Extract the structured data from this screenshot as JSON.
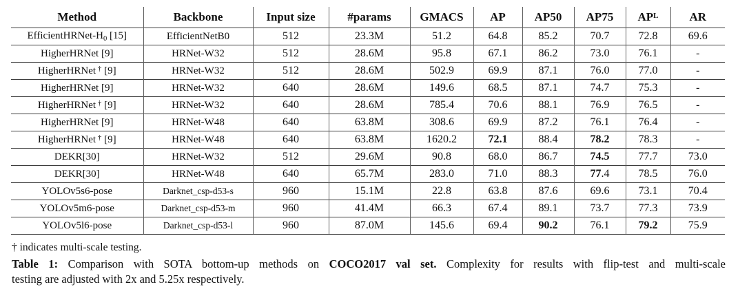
{
  "colors": {
    "background": "#ffffff",
    "text": "#111111",
    "horizontal_rule": "#3d3d3d",
    "vertical_rule": "#5f5f5f"
  },
  "table": {
    "header": [
      "Method",
      "Backbone",
      "Input size",
      "#params",
      "GMACS",
      "AP",
      "AP50",
      "AP75",
      [
        {
          "t": "AP"
        },
        {
          "t": "L",
          "sup": true
        }
      ],
      "AR"
    ],
    "rows": [
      [
        [
          {
            "t": "EfficientHRNet-H"
          },
          {
            "t": "0",
            "sub": true
          },
          {
            "t": " [15]"
          }
        ],
        "EfficientNetB0",
        "512",
        "23.3M",
        "51.2",
        "64.8",
        "85.2",
        "70.7",
        "72.8",
        "69.6"
      ],
      [
        "HigherHRNet [9]",
        "HRNet-W32",
        "512",
        "28.6M",
        "95.8",
        "67.1",
        "86.2",
        "73.0",
        "76.1",
        "-"
      ],
      [
        [
          {
            "t": "HigherHRNet"
          },
          {
            "t": " †",
            "sup": true
          },
          {
            "t": " [9]"
          }
        ],
        "HRNet-W32",
        "512",
        "28.6M",
        "502.9",
        "69.9",
        "87.1",
        "76.0",
        "77.0",
        "-"
      ],
      [
        "HigherHRNet [9]",
        "HRNet-W32",
        "640",
        "28.6M",
        "149.6",
        "68.5",
        "87.1",
        "74.7",
        "75.3",
        "-"
      ],
      [
        [
          {
            "t": "HigherHRNet"
          },
          {
            "t": " †",
            "sup": true
          },
          {
            "t": " [9]"
          }
        ],
        "HRNet-W32",
        "640",
        "28.6M",
        "785.4",
        "70.6",
        "88.1",
        "76.9",
        "76.5",
        "-"
      ],
      [
        "HigherHRNet [9]",
        "HRNet-W48",
        "640",
        "63.8M",
        "308.6",
        "69.9",
        "87.2",
        "76.1",
        "76.4",
        "-"
      ],
      [
        [
          {
            "t": "HigherHRNet"
          },
          {
            "t": " †",
            "sup": true
          },
          {
            "t": " [9]"
          }
        ],
        "HRNet-W48",
        "640",
        "63.8M",
        "1620.2",
        [
          {
            "t": "72.1",
            "b": true
          }
        ],
        "88.4",
        [
          {
            "t": "78.2",
            "b": true
          }
        ],
        "78.3",
        "-"
      ],
      [
        "DEKR[30]",
        "HRNet-W32",
        "512",
        "29.6M",
        "90.8",
        "68.0",
        "86.7",
        [
          {
            "t": "74.5",
            "b": true
          }
        ],
        "77.7",
        "73.0"
      ],
      [
        "DEKR[30]",
        "HRNet-W48",
        "640",
        "65.7M",
        "283.0",
        "71.0",
        "88.3",
        [
          {
            "t": "77",
            "b": true
          },
          {
            "t": ".4"
          }
        ],
        "78.5",
        "76.0"
      ],
      [
        "YOLOv5s6-pose",
        [
          {
            "t": "Darknet_csp-d53-s",
            "sm": true
          }
        ],
        "960",
        "15.1M",
        "22.8",
        "63.8",
        "87.6",
        "69.6",
        "73.1",
        "70.4"
      ],
      [
        "YOLOv5m6-pose",
        [
          {
            "t": "Darknet_csp-d53-m",
            "sm": true
          }
        ],
        "960",
        "41.4M",
        "66.3",
        "67.4",
        "89.1",
        "73.7",
        "77.3",
        "73.9"
      ],
      [
        "YOLOv5l6-pose",
        [
          {
            "t": "Darknet_csp-d53-l",
            "sm": true
          }
        ],
        "960",
        "87.0M",
        "145.6",
        "69.4",
        [
          {
            "t": "90.2",
            "b": true
          }
        ],
        "76.1",
        [
          {
            "t": "79.2",
            "b": true
          }
        ],
        "75.9"
      ]
    ]
  },
  "footnote": "† indicates multi-scale testing.",
  "caption": {
    "line1": [
      {
        "t": "Table 1:",
        "b": true
      },
      {
        "t": " Comparison with SOTA bottom-up methods on "
      },
      {
        "t": "COCO2017 val set.",
        "b": true
      },
      {
        "t": " Complexity for results with flip-test and multi-scale"
      }
    ],
    "line2": "testing are adjusted with 2x and 5.25x respectively."
  }
}
